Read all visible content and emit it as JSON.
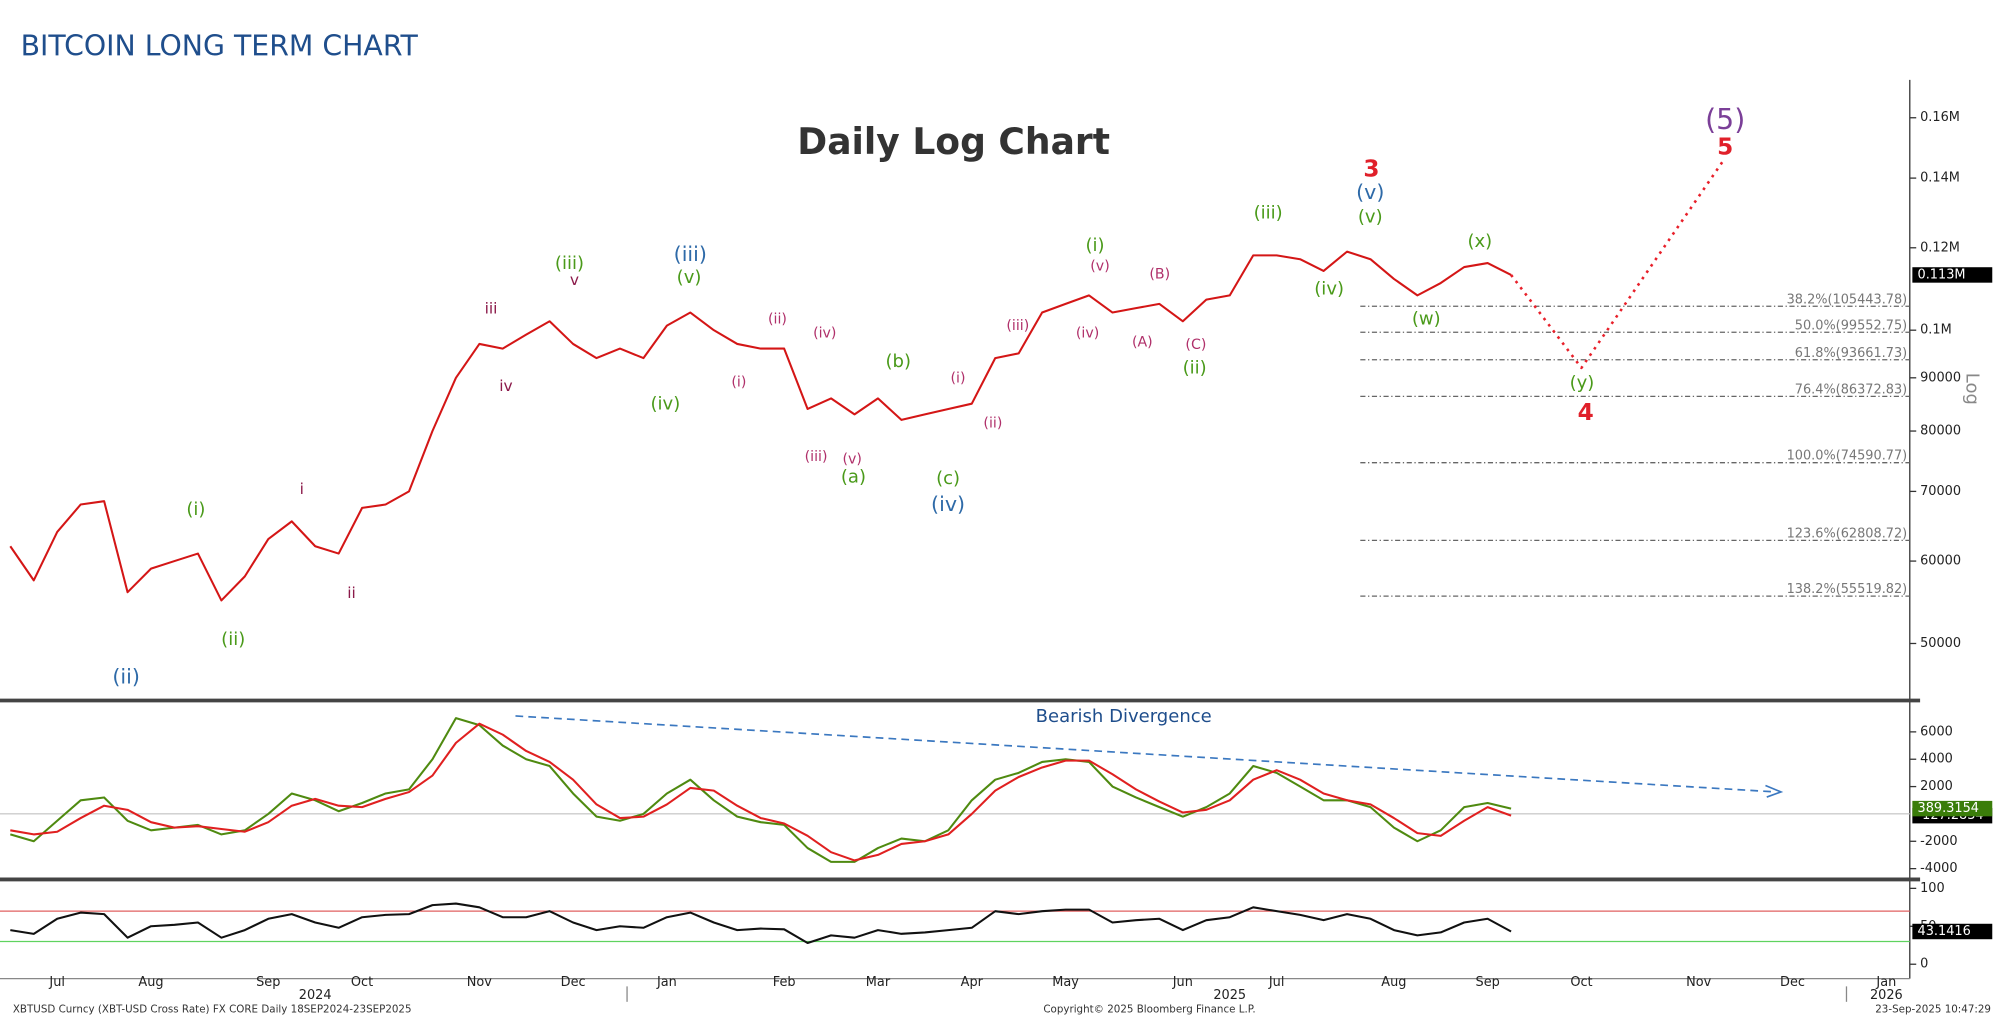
{
  "header": {
    "title": "BITCOIN LONG TERM CHART"
  },
  "chart_data": [
    {
      "type": "line",
      "title": "Daily Log Chart",
      "y_label": "Log",
      "log_scale": true,
      "categories": [
        null,
        null,
        "Jul",
        null,
        null,
        null,
        "Aug",
        null,
        null,
        null,
        null,
        "Sep",
        null,
        null,
        null,
        "Oct",
        null,
        null,
        null,
        null,
        "Nov",
        null,
        null,
        null,
        "Dec",
        null,
        null,
        null,
        "Jan",
        null,
        null,
        null,
        null,
        "Feb",
        null,
        null,
        null,
        "Mar",
        null,
        null,
        null,
        "Apr",
        null,
        null,
        null,
        "May",
        null,
        null,
        null,
        null,
        "Jun",
        null,
        null,
        null,
        "Jul",
        null,
        null,
        null,
        null,
        "Aug",
        null,
        null,
        null,
        "Sep",
        null,
        null,
        null,
        "Oct",
        null,
        null,
        null,
        null,
        "Nov",
        null,
        null,
        null,
        "Dec",
        null,
        null,
        null,
        "Jan",
        null
      ],
      "years": [
        "2024",
        "2025",
        "2026"
      ],
      "series": [
        {
          "color": "#d41616",
          "values": [
            62000,
            57500,
            64000,
            68000,
            68500,
            56000,
            59000,
            60000,
            61000,
            55000,
            58000,
            63000,
            65500,
            62000,
            61000,
            67500,
            68000,
            70000,
            80000,
            90000,
            97000,
            96000,
            99000,
            102000,
            97000,
            94000,
            96000,
            94000,
            101000,
            104000,
            100000,
            97000,
            96000,
            96000,
            84000,
            86000,
            83000,
            86000,
            82000,
            83000,
            84000,
            85000,
            94000,
            95000,
            104000,
            106000,
            108000,
            104000,
            105000,
            106000,
            102000,
            107000,
            108000,
            118000,
            118000,
            117000,
            114000,
            119000,
            117000,
            112000,
            108000,
            111000,
            115000,
            116000,
            113000,
            null,
            null,
            null,
            null,
            null,
            null,
            null,
            null,
            null,
            null,
            null,
            null,
            null,
            null,
            null,
            null,
            null
          ]
        },
        {
          "color": "#e8202a",
          "dashed": true,
          "connect_gaps": true,
          "values": [
            null,
            null,
            null,
            null,
            null,
            null,
            null,
            null,
            null,
            null,
            null,
            null,
            null,
            null,
            null,
            null,
            null,
            null,
            null,
            null,
            null,
            null,
            null,
            null,
            null,
            null,
            null,
            null,
            null,
            null,
            null,
            null,
            null,
            null,
            null,
            null,
            null,
            null,
            null,
            null,
            null,
            null,
            null,
            null,
            null,
            null,
            null,
            null,
            null,
            null,
            null,
            null,
            null,
            null,
            null,
            null,
            null,
            null,
            null,
            null,
            null,
            null,
            null,
            null,
            113000,
            null,
            null,
            92000,
            null,
            null,
            null,
            null,
            null,
            145000,
            null,
            null,
            null,
            null,
            null,
            null,
            null,
            null
          ]
        }
      ],
      "ylim": [
        44200,
        174000
      ],
      "yticks": [
        50000,
        60000,
        70000,
        80000,
        90000,
        {
          "value": 100000,
          "label": "0.1M"
        },
        {
          "value": 120000,
          "label": "0.12M"
        },
        {
          "value": 140000,
          "label": "0.14M"
        },
        {
          "value": 160000,
          "label": "0.16M"
        }
      ],
      "last_value": {
        "value": 113000,
        "label": "0.113M"
      },
      "levels": [
        {
          "value": 105443.78,
          "label": "38.2%(105443.78)"
        },
        {
          "value": 99552.75,
          "label": "50.0%(99552.75)"
        },
        {
          "value": 93661.73,
          "label": "61.8%(93661.73)"
        },
        {
          "value": 86372.83,
          "label": "76.4%(86372.83)"
        },
        {
          "value": 74590.77,
          "label": "100.0%(74590.77)"
        },
        {
          "value": 62808.72,
          "label": "123.6%(62808.72)"
        },
        {
          "value": 55519.82,
          "label": "138.2%(55519.82)"
        }
      ],
      "annotations": [
        {
          "text": "(ii)",
          "color": "#2e6aa8"
        },
        {
          "text": "(i)",
          "color": "#4a9a1a"
        },
        {
          "text": "(ii)",
          "color": "#4a9a1a"
        },
        {
          "text": "i",
          "color": "#8b1a4a"
        },
        {
          "text": "ii",
          "color": "#8b1a4a"
        },
        {
          "text": "iii",
          "color": "#8b1a4a"
        },
        {
          "text": "iv",
          "color": "#8b1a4a"
        },
        {
          "text": "(iii)",
          "color": "#4a9a1a"
        },
        {
          "text": "v",
          "color": "#8b1a4a"
        },
        {
          "text": "(iii)",
          "color": "#2e6aa8"
        },
        {
          "text": "(v)",
          "color": "#4a9a1a"
        },
        {
          "text": "(iv)",
          "color": "#4a9a1a"
        },
        {
          "text": "(ii)",
          "color": "#b0306a"
        },
        {
          "text": "(i)",
          "color": "#b0306a"
        },
        {
          "text": "(iv)",
          "color": "#b0306a"
        },
        {
          "text": "(iii)",
          "color": "#b0306a"
        },
        {
          "text": "(v)",
          "color": "#b0306a"
        },
        {
          "text": "(a)",
          "color": "#4a9a1a"
        },
        {
          "text": "(b)",
          "color": "#4a9a1a"
        },
        {
          "text": "(i)",
          "color": "#b0306a"
        },
        {
          "text": "(ii)",
          "color": "#b0306a"
        },
        {
          "text": "(c)",
          "color": "#4a9a1a"
        },
        {
          "text": "(iv)",
          "color": "#2e6aa8"
        },
        {
          "text": "(iii)",
          "color": "#b0306a"
        },
        {
          "text": "(i)",
          "color": "#4a9a1a"
        },
        {
          "text": "(v)",
          "color": "#b0306a"
        },
        {
          "text": "(iv)",
          "color": "#b0306a"
        },
        {
          "text": "(B)",
          "color": "#b0306a"
        },
        {
          "text": "(A)",
          "color": "#b0306a"
        },
        {
          "text": "(C)",
          "color": "#b0306a"
        },
        {
          "text": "(ii)",
          "color": "#4a9a1a"
        },
        {
          "text": "(iii)",
          "color": "#4a9a1a"
        },
        {
          "text": "(iv)",
          "color": "#4a9a1a"
        },
        {
          "text": "3",
          "color": "#e0202a"
        },
        {
          "text": "(v)",
          "color": "#2e6aa8"
        },
        {
          "text": "(v)",
          "color": "#4a9a1a"
        },
        {
          "text": "(x)",
          "color": "#4a9a1a"
        },
        {
          "text": "(w)",
          "color": "#4a9a1a"
        },
        {
          "text": "(y)",
          "color": "#4a9a1a"
        },
        {
          "text": "4",
          "color": "#e0202a"
        },
        {
          "text": "(5)",
          "color": "#7b3f98"
        },
        {
          "text": "5",
          "color": "#e0202a"
        }
      ]
    },
    {
      "type": "line",
      "annotation": "Bearish Divergence",
      "series": [
        {
          "color": "#4f8a10",
          "values": [
            -1500,
            -2000,
            -500,
            1000,
            1200,
            -500,
            -1200,
            -1000,
            -800,
            -1500,
            -1200,
            0,
            1500,
            1000,
            200,
            800,
            1500,
            1800,
            4000,
            7000,
            6500,
            5000,
            4000,
            3500,
            1500,
            -200,
            -500,
            0,
            1500,
            2500,
            1000,
            -200,
            -600,
            -800,
            -2500,
            -3500,
            -3500,
            -2500,
            -1800,
            -2000,
            -1200,
            1000,
            2500,
            3000,
            3800,
            4000,
            3800,
            2000,
            1200,
            500,
            -200,
            500,
            1500,
            3500,
            3000,
            2000,
            1000,
            1000,
            500,
            -1000,
            -2000,
            -1200,
            500,
            800,
            389.3154,
            null,
            null,
            null,
            null,
            null,
            null,
            null,
            null,
            null,
            null,
            null,
            null,
            null,
            null,
            null,
            null,
            null
          ]
        },
        {
          "color": "#e02020",
          "values": [
            -1200,
            -1500,
            -1300,
            -300,
            600,
            300,
            -600,
            -1000,
            -900,
            -1100,
            -1300,
            -600,
            600,
            1100,
            600,
            500,
            1100,
            1600,
            2800,
            5200,
            6600,
            5800,
            4600,
            3800,
            2500,
            700,
            -300,
            -200,
            700,
            1900,
            1700,
            600,
            -300,
            -700,
            -1600,
            -2800,
            -3400,
            -3000,
            -2200,
            -2000,
            -1500,
            0,
            1700,
            2700,
            3400,
            3900,
            3900,
            2900,
            1800,
            900,
            100,
            300,
            1000,
            2500,
            3200,
            2500,
            1500,
            1000,
            700,
            -300,
            -1400,
            -1600,
            -500,
            500,
            -127.2834,
            null,
            null,
            null,
            null,
            null,
            null,
            null,
            null,
            null,
            null,
            null,
            null,
            null,
            null,
            null,
            null,
            null
          ]
        }
      ],
      "ylim": [
        -4700,
        8200
      ],
      "yticks": [
        -4000,
        -2000,
        2000,
        4000,
        6000
      ],
      "last_values": [
        389.3154,
        -127.2834
      ]
    },
    {
      "type": "line",
      "series": [
        {
          "color": "#111111",
          "values": [
            45,
            40,
            60,
            68,
            66,
            35,
            50,
            52,
            55,
            35,
            45,
            60,
            66,
            55,
            48,
            62,
            65,
            66,
            78,
            80,
            75,
            62,
            62,
            70,
            55,
            45,
            50,
            48,
            62,
            68,
            55,
            45,
            47,
            46,
            28,
            38,
            35,
            45,
            40,
            42,
            45,
            48,
            70,
            66,
            70,
            72,
            72,
            55,
            58,
            60,
            45,
            58,
            62,
            75,
            70,
            65,
            58,
            66,
            60,
            45,
            38,
            42,
            55,
            60,
            43.1416,
            null,
            null,
            null,
            null,
            null,
            null,
            null,
            null,
            null,
            null,
            null,
            null,
            null,
            null,
            null,
            null,
            null
          ]
        }
      ],
      "ylim": [
        -19,
        110
      ],
      "yticks": [
        0,
        50,
        100
      ],
      "bands": [
        {
          "value": 70,
          "color": "#e06060"
        },
        {
          "value": 30,
          "color": "#5fd35f"
        }
      ],
      "last_value": 43.1416
    }
  ],
  "footer": {
    "source": "XBTUSD Curncy (XBT-USD Cross Rate) FX CORE  Daily 18SEP2024-23SEP2025",
    "copyright": "Copyright© 2025 Bloomberg Finance L.P.",
    "timestamp": "23-Sep-2025 10:47:29"
  }
}
